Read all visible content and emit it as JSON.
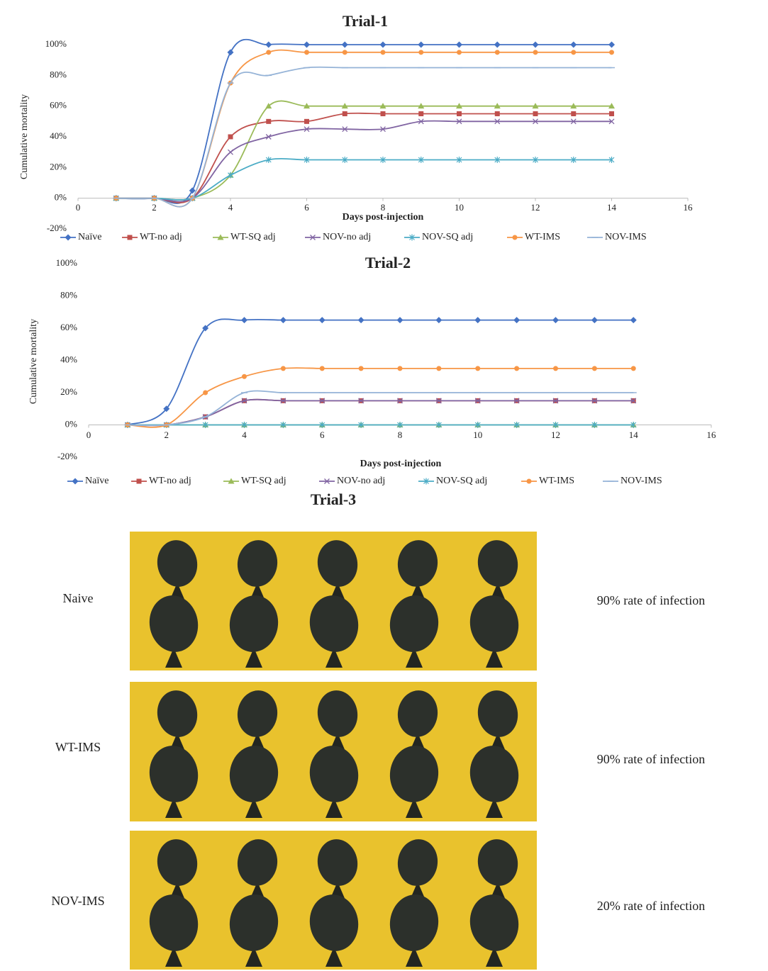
{
  "chart_data": [
    {
      "type": "line",
      "title": "Trial-1",
      "x_label": "Days post-injection",
      "y_label": "Cumulative mortality",
      "x": [
        1,
        2,
        3,
        4,
        5,
        6,
        7,
        8,
        9,
        10,
        11,
        12,
        13,
        14
      ],
      "xlim": [
        0,
        16
      ],
      "xticks": [
        0,
        2,
        4,
        6,
        8,
        10,
        12,
        14,
        16
      ],
      "ylim": [
        -20,
        100
      ],
      "yticks": [
        {
          "value": -20,
          "label": "-20%"
        },
        {
          "value": 0,
          "label": "0%"
        },
        {
          "value": 20,
          "label": "20%"
        },
        {
          "value": 40,
          "label": "40%"
        },
        {
          "value": 60,
          "label": "60%"
        },
        {
          "value": 80,
          "label": "80%"
        },
        {
          "value": 100,
          "label": "100%"
        }
      ],
      "grid": false,
      "legend": "bottom",
      "series": [
        {
          "name": "Naïve",
          "color": "#4472c4",
          "marker": "diamond",
          "values": [
            0,
            0,
            5,
            95,
            100,
            100,
            100,
            100,
            100,
            100,
            100,
            100,
            100,
            100
          ]
        },
        {
          "name": "WT-no adj",
          "color": "#c0504d",
          "marker": "square",
          "values": [
            0,
            0,
            0,
            40,
            50,
            50,
            55,
            55,
            55,
            55,
            55,
            55,
            55,
            55
          ]
        },
        {
          "name": "WT-SQ adj",
          "color": "#9bbb59",
          "marker": "triangle",
          "values": [
            0,
            0,
            0,
            15,
            60,
            60,
            60,
            60,
            60,
            60,
            60,
            60,
            60,
            60
          ]
        },
        {
          "name": "NOV-no adj",
          "color": "#8064a2",
          "marker": "x",
          "values": [
            0,
            0,
            0,
            30,
            40,
            45,
            45,
            45,
            50,
            50,
            50,
            50,
            50,
            50
          ]
        },
        {
          "name": "NOV-SQ adj",
          "color": "#4bacc6",
          "marker": "star",
          "values": [
            0,
            0,
            0,
            15,
            25,
            25,
            25,
            25,
            25,
            25,
            25,
            25,
            25,
            25
          ]
        },
        {
          "name": "WT-IMS",
          "color": "#f79646",
          "marker": "circle",
          "values": [
            0,
            0,
            0,
            75,
            95,
            95,
            95,
            95,
            95,
            95,
            95,
            95,
            95,
            95
          ]
        },
        {
          "name": "NOV-IMS",
          "color": "#95b3d7",
          "marker": "dash",
          "values": [
            0,
            0,
            0,
            75,
            80,
            85,
            85,
            85,
            85,
            85,
            85,
            85,
            85,
            85
          ]
        }
      ]
    },
    {
      "type": "line",
      "title": "Trial-2",
      "x_label": "Days post-injection",
      "y_label": "Cumulative mortality",
      "x": [
        1,
        2,
        3,
        4,
        5,
        6,
        7,
        8,
        9,
        10,
        11,
        12,
        13,
        14
      ],
      "xlim": [
        0,
        16
      ],
      "xticks": [
        0,
        2,
        4,
        6,
        8,
        10,
        12,
        14,
        16
      ],
      "ylim": [
        -20,
        100
      ],
      "yticks": [
        {
          "value": -20,
          "label": "-20%"
        },
        {
          "value": 0,
          "label": "0%"
        },
        {
          "value": 20,
          "label": "20%"
        },
        {
          "value": 40,
          "label": "40%"
        },
        {
          "value": 60,
          "label": "60%"
        },
        {
          "value": 80,
          "label": "80%"
        },
        {
          "value": 100,
          "label": "100%"
        }
      ],
      "grid": false,
      "legend": "bottom",
      "series": [
        {
          "name": "Naïve",
          "color": "#4472c4",
          "marker": "diamond",
          "values": [
            0,
            10,
            60,
            65,
            65,
            65,
            65,
            65,
            65,
            65,
            65,
            65,
            65,
            65
          ]
        },
        {
          "name": "WT-no adj",
          "color": "#c0504d",
          "marker": "square",
          "values": [
            0,
            0,
            5,
            15,
            15,
            15,
            15,
            15,
            15,
            15,
            15,
            15,
            15,
            15
          ]
        },
        {
          "name": "WT-SQ adj",
          "color": "#9bbb59",
          "marker": "triangle",
          "values": [
            0,
            0,
            0,
            0,
            0,
            0,
            0,
            0,
            0,
            0,
            0,
            0,
            0,
            0
          ]
        },
        {
          "name": "NOV-no adj",
          "color": "#8064a2",
          "marker": "x",
          "values": [
            0,
            0,
            5,
            15,
            15,
            15,
            15,
            15,
            15,
            15,
            15,
            15,
            15,
            15
          ]
        },
        {
          "name": "NOV-SQ adj",
          "color": "#4bacc6",
          "marker": "star",
          "values": [
            0,
            0,
            0,
            0,
            0,
            0,
            0,
            0,
            0,
            0,
            0,
            0,
            0,
            0
          ]
        },
        {
          "name": "WT-IMS",
          "color": "#f79646",
          "marker": "circle",
          "values": [
            0,
            0,
            20,
            30,
            35,
            35,
            35,
            35,
            35,
            35,
            35,
            35,
            35,
            35
          ]
        },
        {
          "name": "NOV-IMS",
          "color": "#95b3d7",
          "marker": "dash",
          "values": [
            0,
            0,
            5,
            20,
            20,
            20,
            20,
            20,
            20,
            20,
            20,
            20,
            20,
            20
          ]
        }
      ]
    }
  ],
  "photo_panel": {
    "title": "Trial-3",
    "rows": [
      {
        "label": "Naive",
        "rate": "90% rate of infection"
      },
      {
        "label": "WT-IMS",
        "rate": "90% rate of infection"
      },
      {
        "label": "NOV-IMS",
        "rate": "20% rate of infection"
      }
    ]
  }
}
